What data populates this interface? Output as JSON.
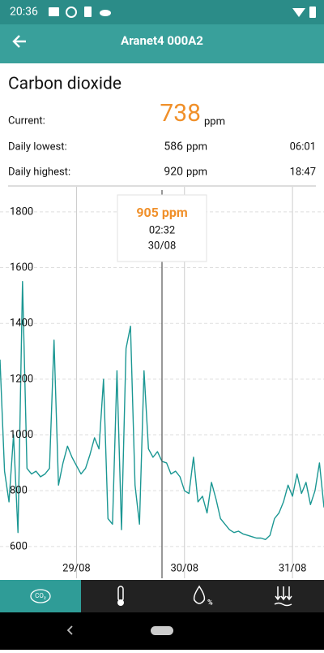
{
  "status_bar": {
    "time": "20:36"
  },
  "app_bar": {
    "title": "Aranet4 000A2"
  },
  "summary": {
    "heading": "Carbon dioxide",
    "current": {
      "label": "Current:",
      "value": 738,
      "unit": "ppm"
    },
    "lowest": {
      "label": "Daily lowest:",
      "value": 586,
      "unit": "ppm",
      "time": "06:01"
    },
    "highest": {
      "label": "Daily highest:",
      "value": 920,
      "unit": "ppm",
      "time": "18:47"
    }
  },
  "chart_data": {
    "type": "line",
    "color": "#1b9793",
    "categories": [
      null,
      null,
      null,
      null,
      null,
      null,
      null,
      null,
      null,
      null,
      null,
      null,
      null,
      null,
      null,
      null,
      null,
      "29/08",
      null,
      null,
      null,
      null,
      null,
      null,
      null,
      null,
      null,
      null,
      null,
      null,
      null,
      null,
      null,
      null,
      null,
      null,
      null,
      null,
      null,
      null,
      null,
      "30/08",
      null,
      null,
      null,
      null,
      null,
      null,
      null,
      null,
      null,
      null,
      null,
      null,
      null,
      null,
      null,
      null,
      null,
      null,
      null,
      null,
      null,
      null,
      null,
      "31/08",
      null,
      null,
      null,
      null,
      null,
      null,
      null
    ],
    "values": [
      1270,
      870,
      760,
      1000,
      650,
      1550,
      880,
      860,
      870,
      850,
      860,
      880,
      1340,
      820,
      900,
      960,
      920,
      890,
      860,
      880,
      930,
      990,
      950,
      1200,
      700,
      680,
      1230,
      660,
      1310,
      1390,
      820,
      680,
      1230,
      950,
      920,
      940,
      905,
      900,
      860,
      870,
      850,
      800,
      790,
      920,
      760,
      780,
      720,
      830,
      770,
      700,
      680,
      660,
      650,
      655,
      645,
      640,
      635,
      630,
      630,
      625,
      640,
      700,
      720,
      760,
      820,
      780,
      860,
      790,
      830,
      750,
      800,
      900,
      740
    ],
    "ylim": [
      550,
      1890
    ],
    "yticks": [
      600,
      800,
      1000,
      1200,
      1400,
      1600,
      1800
    ],
    "grid": true,
    "tooltip": {
      "value": "905 ppm",
      "time": "02:32",
      "date": "30/08"
    }
  },
  "tab_icons": {
    "co2": "CO₂",
    "humidity": "%"
  }
}
